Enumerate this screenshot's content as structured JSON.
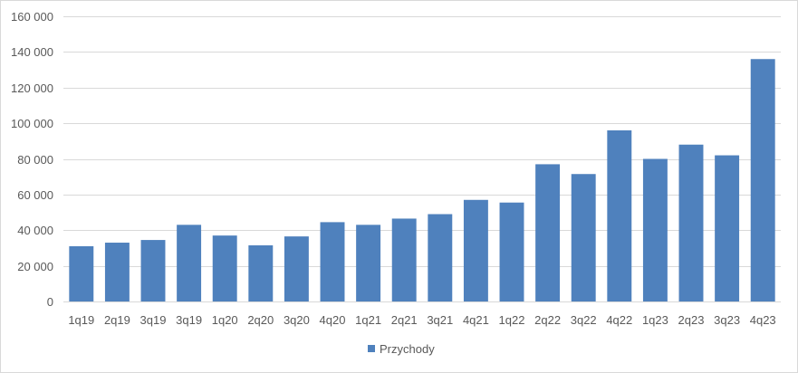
{
  "chart_data": {
    "type": "bar",
    "title": "",
    "xlabel": "",
    "ylabel": "",
    "categories": [
      "1q19",
      "2q19",
      "3q19",
      "3q19",
      "1q20",
      "2q20",
      "3q20",
      "4q20",
      "1q21",
      "2q21",
      "3q21",
      "4q21",
      "1q22",
      "2q22",
      "3q22",
      "4q22",
      "1q23",
      "2q23",
      "3q23",
      "4q23"
    ],
    "series": [
      {
        "name": "Przychody",
        "color": "#4f81bd",
        "values": [
          31000,
          33000,
          34500,
          43000,
          37000,
          31500,
          36500,
          44500,
          43000,
          46500,
          49000,
          57000,
          55500,
          77000,
          71500,
          96000,
          80000,
          88000,
          82000,
          136000
        ]
      }
    ],
    "ylim": [
      0,
      160000
    ],
    "y_ticks": [
      0,
      20000,
      40000,
      60000,
      80000,
      100000,
      120000,
      140000,
      160000
    ],
    "y_tick_labels": [
      "0",
      "20 000",
      "40 000",
      "60 000",
      "80 000",
      "100 000",
      "120 000",
      "140 000",
      "160 000"
    ],
    "grid": true,
    "legend_position": "bottom",
    "gridline_color": "#d9d9d9"
  }
}
